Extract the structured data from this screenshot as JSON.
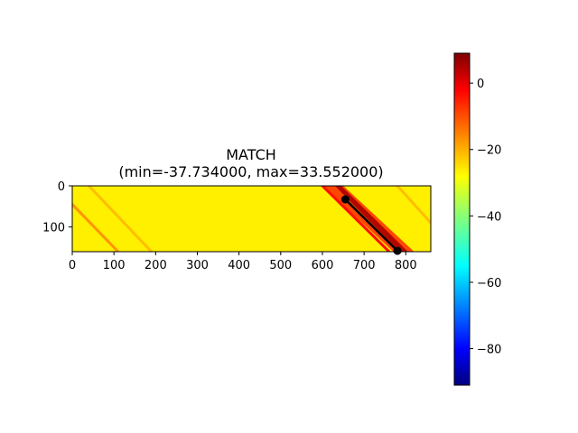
{
  "chart_data": {
    "type": "heatmap",
    "title": "MATCH",
    "subtitle": "(min=-37.734000, max=33.552000)",
    "xlabel": "",
    "ylabel": "",
    "xlim": [
      0,
      860
    ],
    "ylim": [
      160,
      0
    ],
    "x_ticks": [
      0,
      100,
      200,
      300,
      400,
      500,
      600,
      700,
      800
    ],
    "y_ticks": [
      0,
      100
    ],
    "colormap": "jet",
    "colorbar": {
      "range": [
        -91,
        9
      ],
      "ticks": [
        0,
        -20,
        -40,
        -60,
        -80
      ]
    },
    "background_value": -27,
    "diagonal_streaks": [
      {
        "x_start": 0,
        "y_start": 45,
        "x_end": 110,
        "y_end": 160,
        "value": -18
      },
      {
        "x_start": 40,
        "y_start": 0,
        "x_end": 190,
        "y_end": 160,
        "value": -22
      },
      {
        "x_start": 600,
        "y_start": 0,
        "x_end": 760,
        "y_end": 160,
        "value": -5
      },
      {
        "x_start": 780,
        "y_start": 0,
        "x_end": 860,
        "y_end": 90,
        "value": -22
      }
    ],
    "hot_band": {
      "x_start": 640,
      "y_start": 0,
      "x_end": 800,
      "y_end": 160,
      "value": 5
    },
    "match_path": {
      "points": [
        [
          655,
          33
        ],
        [
          780,
          158
        ]
      ],
      "color": "#000000"
    }
  }
}
